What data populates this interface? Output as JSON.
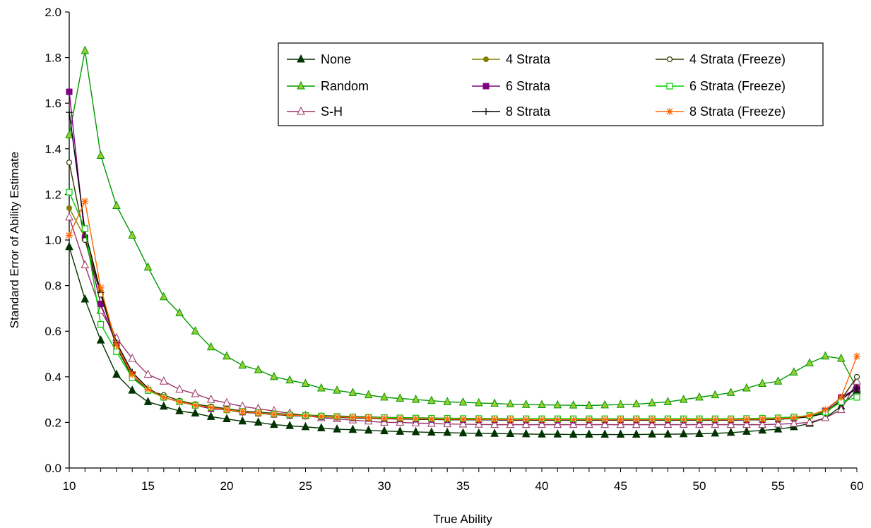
{
  "chart_data": {
    "type": "line",
    "title": "",
    "xlabel": "True Ability",
    "ylabel": "Standard Error of Ability Estimate",
    "xlim": [
      10,
      60
    ],
    "ylim": [
      0,
      2
    ],
    "xticks": [
      10,
      15,
      20,
      25,
      30,
      35,
      40,
      45,
      50,
      55,
      60
    ],
    "yticks": [
      0.0,
      0.2,
      0.4,
      0.6,
      0.8,
      1.0,
      1.2,
      1.4,
      1.6,
      1.8,
      2.0
    ],
    "ytick_labels": [
      "0.0",
      "0.2",
      "0.4",
      "0.6",
      "0.8",
      "1.0",
      "1.2",
      "1.4",
      "1.6",
      "1.8",
      "2.0"
    ],
    "grid": false,
    "legend_position": "top-right",
    "x": [
      10,
      11,
      12,
      13,
      14,
      15,
      16,
      17,
      18,
      19,
      20,
      21,
      22,
      23,
      24,
      25,
      26,
      27,
      28,
      29,
      30,
      31,
      32,
      33,
      34,
      35,
      36,
      37,
      38,
      39,
      40,
      41,
      42,
      43,
      44,
      45,
      46,
      47,
      48,
      49,
      50,
      51,
      52,
      53,
      54,
      55,
      56,
      57,
      58,
      59,
      60
    ],
    "series": [
      {
        "name": "None",
        "color": "#003300",
        "marker": "triangle-filled",
        "values": [
          0.97,
          0.74,
          0.56,
          0.41,
          0.34,
          0.29,
          0.27,
          0.25,
          0.24,
          0.225,
          0.215,
          0.205,
          0.2,
          0.19,
          0.185,
          0.18,
          0.175,
          0.17,
          0.168,
          0.165,
          0.162,
          0.16,
          0.158,
          0.156,
          0.155,
          0.153,
          0.152,
          0.151,
          0.15,
          0.149,
          0.148,
          0.148,
          0.147,
          0.147,
          0.147,
          0.147,
          0.147,
          0.148,
          0.148,
          0.149,
          0.15,
          0.152,
          0.155,
          0.16,
          0.165,
          0.17,
          0.18,
          0.195,
          0.22,
          0.27,
          0.34
        ]
      },
      {
        "name": "Random",
        "color": "#009900",
        "marker": "triangle-open-green",
        "values": [
          1.46,
          1.83,
          1.37,
          1.15,
          1.02,
          0.88,
          0.75,
          0.68,
          0.6,
          0.53,
          0.49,
          0.45,
          0.43,
          0.4,
          0.385,
          0.37,
          0.35,
          0.34,
          0.33,
          0.32,
          0.31,
          0.305,
          0.3,
          0.295,
          0.29,
          0.288,
          0.285,
          0.283,
          0.28,
          0.278,
          0.277,
          0.276,
          0.275,
          0.274,
          0.276,
          0.278,
          0.28,
          0.285,
          0.29,
          0.3,
          0.31,
          0.32,
          0.33,
          0.35,
          0.37,
          0.38,
          0.42,
          0.46,
          0.49,
          0.48,
          0.35
        ]
      },
      {
        "name": "S-H",
        "color": "#993366",
        "marker": "triangle-open",
        "values": [
          1.1,
          0.89,
          0.69,
          0.57,
          0.48,
          0.41,
          0.38,
          0.345,
          0.325,
          0.3,
          0.285,
          0.27,
          0.26,
          0.25,
          0.24,
          0.23,
          0.22,
          0.215,
          0.21,
          0.205,
          0.2,
          0.2,
          0.197,
          0.195,
          0.193,
          0.192,
          0.191,
          0.19,
          0.19,
          0.19,
          0.19,
          0.19,
          0.19,
          0.19,
          0.19,
          0.19,
          0.19,
          0.19,
          0.19,
          0.19,
          0.19,
          0.19,
          0.19,
          0.19,
          0.19,
          0.192,
          0.195,
          0.2,
          0.22,
          0.255,
          0.38
        ]
      },
      {
        "name": "4 Strata",
        "color": "#808000",
        "marker": "circle-filled",
        "values": [
          1.14,
          1.01,
          0.77,
          0.53,
          0.4,
          0.34,
          0.31,
          0.29,
          0.275,
          0.265,
          0.255,
          0.245,
          0.24,
          0.235,
          0.23,
          0.228,
          0.225,
          0.222,
          0.22,
          0.218,
          0.216,
          0.215,
          0.214,
          0.213,
          0.212,
          0.212,
          0.211,
          0.211,
          0.21,
          0.21,
          0.21,
          0.21,
          0.21,
          0.21,
          0.21,
          0.21,
          0.21,
          0.21,
          0.21,
          0.21,
          0.21,
          0.21,
          0.21,
          0.211,
          0.212,
          0.214,
          0.218,
          0.225,
          0.24,
          0.3,
          0.35
        ]
      },
      {
        "name": "6 Strata",
        "color": "#800080",
        "marker": "square-filled",
        "values": [
          1.65,
          1.01,
          0.72,
          0.54,
          0.41,
          0.34,
          0.31,
          0.29,
          0.275,
          0.26,
          0.255,
          0.245,
          0.24,
          0.235,
          0.23,
          0.228,
          0.225,
          0.223,
          0.22,
          0.218,
          0.216,
          0.215,
          0.214,
          0.213,
          0.212,
          0.212,
          0.211,
          0.211,
          0.21,
          0.21,
          0.21,
          0.21,
          0.21,
          0.21,
          0.21,
          0.21,
          0.21,
          0.21,
          0.21,
          0.21,
          0.21,
          0.21,
          0.21,
          0.211,
          0.212,
          0.214,
          0.218,
          0.23,
          0.25,
          0.31,
          0.35
        ]
      },
      {
        "name": "8 Strata",
        "color": "#000000",
        "marker": "plus",
        "values": [
          1.56,
          1.04,
          0.77,
          0.55,
          0.42,
          0.35,
          0.31,
          0.29,
          0.275,
          0.265,
          0.255,
          0.245,
          0.24,
          0.235,
          0.23,
          0.228,
          0.225,
          0.223,
          0.22,
          0.218,
          0.216,
          0.215,
          0.214,
          0.213,
          0.212,
          0.212,
          0.211,
          0.211,
          0.21,
          0.21,
          0.21,
          0.21,
          0.21,
          0.21,
          0.21,
          0.21,
          0.21,
          0.21,
          0.21,
          0.21,
          0.21,
          0.21,
          0.21,
          0.211,
          0.212,
          0.214,
          0.218,
          0.225,
          0.24,
          0.3,
          0.35
        ]
      },
      {
        "name": "4 Strata (Freeze)",
        "color": "#333300",
        "marker": "circle-open",
        "values": [
          1.34,
          1.0,
          0.76,
          0.53,
          0.4,
          0.34,
          0.32,
          0.295,
          0.28,
          0.27,
          0.26,
          0.25,
          0.245,
          0.24,
          0.235,
          0.232,
          0.23,
          0.228,
          0.226,
          0.224,
          0.222,
          0.221,
          0.22,
          0.219,
          0.218,
          0.218,
          0.217,
          0.217,
          0.216,
          0.216,
          0.216,
          0.216,
          0.216,
          0.216,
          0.216,
          0.216,
          0.216,
          0.216,
          0.216,
          0.216,
          0.216,
          0.216,
          0.216,
          0.217,
          0.218,
          0.22,
          0.224,
          0.23,
          0.245,
          0.3,
          0.4
        ]
      },
      {
        "name": "6 Strata (Freeze)",
        "color": "#00cc00",
        "marker": "square-open",
        "values": [
          1.21,
          1.05,
          0.63,
          0.51,
          0.395,
          0.34,
          0.31,
          0.29,
          0.275,
          0.265,
          0.255,
          0.248,
          0.242,
          0.237,
          0.233,
          0.23,
          0.228,
          0.226,
          0.224,
          0.222,
          0.221,
          0.22,
          0.219,
          0.218,
          0.218,
          0.217,
          0.217,
          0.216,
          0.216,
          0.216,
          0.216,
          0.216,
          0.216,
          0.216,
          0.216,
          0.216,
          0.216,
          0.216,
          0.216,
          0.216,
          0.216,
          0.216,
          0.216,
          0.217,
          0.218,
          0.22,
          0.224,
          0.23,
          0.245,
          0.29,
          0.31
        ]
      },
      {
        "name": "8 Strata (Freeze)",
        "color": "#ff6600",
        "marker": "star",
        "values": [
          1.02,
          1.17,
          0.79,
          0.54,
          0.41,
          0.345,
          0.31,
          0.29,
          0.275,
          0.265,
          0.255,
          0.247,
          0.241,
          0.236,
          0.232,
          0.229,
          0.226,
          0.224,
          0.222,
          0.22,
          0.218,
          0.217,
          0.216,
          0.215,
          0.214,
          0.214,
          0.213,
          0.213,
          0.212,
          0.212,
          0.212,
          0.212,
          0.212,
          0.212,
          0.212,
          0.212,
          0.212,
          0.212,
          0.212,
          0.212,
          0.212,
          0.212,
          0.212,
          0.213,
          0.214,
          0.216,
          0.22,
          0.23,
          0.255,
          0.31,
          0.49
        ]
      }
    ]
  }
}
